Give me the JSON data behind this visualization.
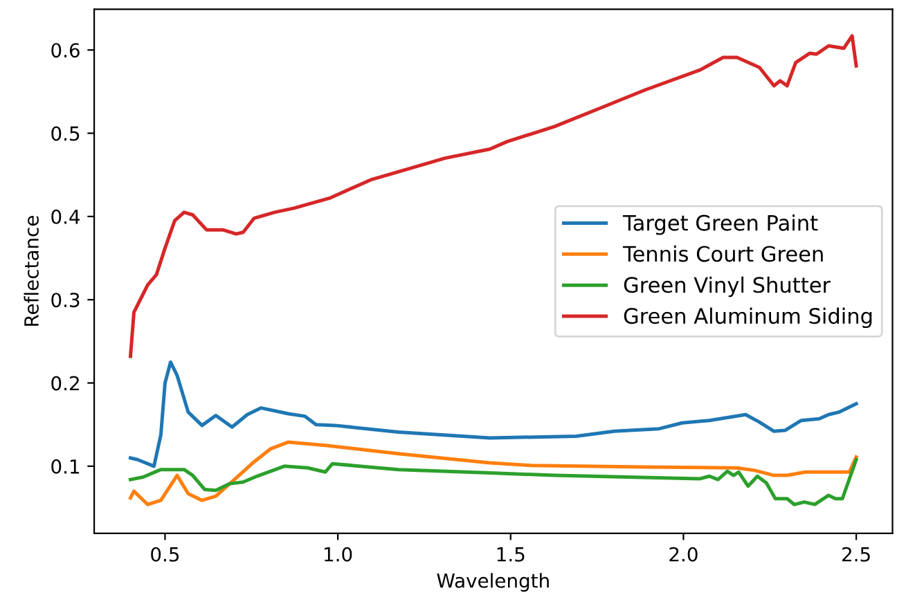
{
  "chart_data": {
    "type": "line",
    "xlabel": "Wavelength",
    "ylabel": "Reflectance",
    "xlim": [
      0.295,
      2.605
    ],
    "ylim": [
      0.0194,
      0.649
    ],
    "xticks": [
      {
        "value": 0.5,
        "label": "0.5"
      },
      {
        "value": 1.0,
        "label": "1.0"
      },
      {
        "value": 1.5,
        "label": "1.5"
      },
      {
        "value": 2.0,
        "label": "2.0"
      },
      {
        "value": 2.5,
        "label": "2.5"
      }
    ],
    "yticks": [
      0.1,
      0.2,
      0.3,
      0.4,
      0.5,
      0.6
    ],
    "grid": false,
    "legend": "right",
    "marker": "none",
    "line_style": "solid",
    "series": [
      {
        "name": "Target Green Paint",
        "color": "#1f77b4",
        "x": [
          0.4,
          0.42,
          0.468,
          0.488,
          0.5,
          0.516,
          0.535,
          0.567,
          0.607,
          0.647,
          0.694,
          0.738,
          0.778,
          0.857,
          0.905,
          0.937,
          0.992,
          1.175,
          1.44,
          1.69,
          1.8,
          1.93,
          1.996,
          2.075,
          2.18,
          2.22,
          2.262,
          2.294,
          2.341,
          2.393,
          2.42,
          2.45,
          2.5
        ],
        "values": [
          0.11,
          0.108,
          0.1,
          0.138,
          0.2,
          0.225,
          0.209,
          0.165,
          0.149,
          0.161,
          0.147,
          0.162,
          0.17,
          0.163,
          0.16,
          0.15,
          0.149,
          0.141,
          0.134,
          0.136,
          0.142,
          0.145,
          0.152,
          0.155,
          0.162,
          0.153,
          0.142,
          0.143,
          0.155,
          0.157,
          0.162,
          0.165,
          0.175
        ]
      },
      {
        "name": "Tennis Court Green",
        "color": "#ff7f0e",
        "x": [
          0.4,
          0.41,
          0.45,
          0.488,
          0.535,
          0.567,
          0.607,
          0.647,
          0.698,
          0.754,
          0.806,
          0.857,
          0.964,
          1.175,
          1.44,
          1.56,
          1.89,
          2.155,
          2.206,
          2.262,
          2.3,
          2.353,
          2.46,
          2.48,
          2.5
        ],
        "values": [
          0.062,
          0.07,
          0.054,
          0.059,
          0.089,
          0.067,
          0.059,
          0.064,
          0.083,
          0.104,
          0.121,
          0.129,
          0.125,
          0.115,
          0.104,
          0.101,
          0.099,
          0.098,
          0.095,
          0.089,
          0.089,
          0.093,
          0.093,
          0.093,
          0.111
        ]
      },
      {
        "name": "Green Vinyl Shutter",
        "color": "#2ca02c",
        "x": [
          0.4,
          0.437,
          0.488,
          0.555,
          0.58,
          0.615,
          0.647,
          0.687,
          0.726,
          0.766,
          0.845,
          0.913,
          0.964,
          0.984,
          1.175,
          1.44,
          1.627,
          2.048,
          2.075,
          2.1,
          2.127,
          2.145,
          2.16,
          2.187,
          2.214,
          2.24,
          2.266,
          2.3,
          2.321,
          2.35,
          2.38,
          2.42,
          2.44,
          2.46,
          2.5
        ],
        "values": [
          0.084,
          0.087,
          0.096,
          0.096,
          0.089,
          0.072,
          0.071,
          0.079,
          0.081,
          0.088,
          0.1,
          0.098,
          0.093,
          0.103,
          0.096,
          0.092,
          0.089,
          0.085,
          0.088,
          0.084,
          0.094,
          0.089,
          0.093,
          0.076,
          0.088,
          0.08,
          0.061,
          0.061,
          0.054,
          0.057,
          0.054,
          0.065,
          0.061,
          0.061,
          0.108
        ]
      },
      {
        "name": "Green Aluminum Siding",
        "color": "#d62728",
        "x": [
          0.4,
          0.41,
          0.45,
          0.475,
          0.5,
          0.528,
          0.555,
          0.58,
          0.62,
          0.667,
          0.706,
          0.726,
          0.758,
          0.817,
          0.873,
          0.976,
          1.095,
          1.31,
          1.44,
          1.49,
          1.627,
          1.758,
          1.889,
          2.048,
          2.115,
          2.155,
          2.22,
          2.262,
          2.28,
          2.3,
          2.325,
          2.365,
          2.385,
          2.42,
          2.464,
          2.488,
          2.5
        ],
        "values": [
          0.232,
          0.285,
          0.318,
          0.33,
          0.362,
          0.395,
          0.405,
          0.402,
          0.384,
          0.384,
          0.379,
          0.381,
          0.398,
          0.405,
          0.41,
          0.422,
          0.444,
          0.47,
          0.481,
          0.49,
          0.508,
          0.53,
          0.552,
          0.576,
          0.591,
          0.591,
          0.579,
          0.557,
          0.563,
          0.557,
          0.585,
          0.596,
          0.595,
          0.605,
          0.602,
          0.617,
          0.581
        ]
      }
    ]
  }
}
